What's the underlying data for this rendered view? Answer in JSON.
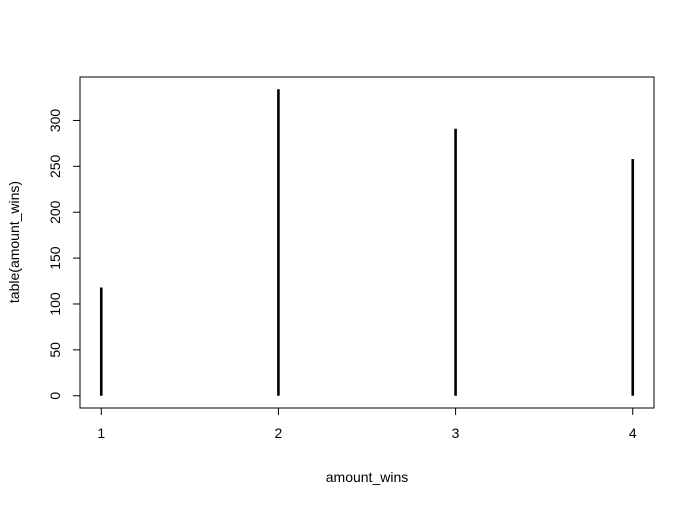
{
  "chart_data": {
    "type": "bar",
    "style": "vertical-lines",
    "categories": [
      "1",
      "2",
      "3",
      "4"
    ],
    "x": [
      1,
      2,
      3,
      4
    ],
    "values": [
      118,
      334,
      291,
      258
    ],
    "title": "",
    "xlabel": "amount_wins",
    "ylabel": "table(amount_wins)",
    "xlim": [
      0.88,
      4.12
    ],
    "ylim": [
      -13.36,
      347.36
    ],
    "x_ticks": [
      "1",
      "2",
      "3",
      "4"
    ],
    "y_ticks": [
      "0",
      "50",
      "100",
      "150",
      "200",
      "250",
      "300"
    ],
    "grid": false,
    "legend": "none",
    "line_color": "#000000"
  }
}
